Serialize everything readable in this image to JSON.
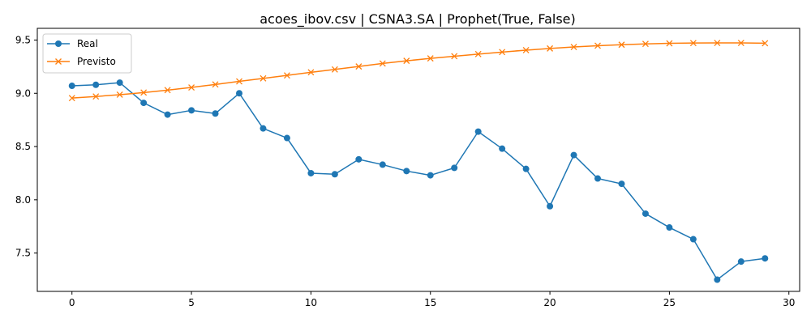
{
  "chart_data": {
    "type": "line",
    "title": "acoes_ibov.csv | CSNA3.SA | Prophet(True, False)",
    "xlabel": "",
    "ylabel": "",
    "xlim": [
      -1.45,
      30.45
    ],
    "ylim": [
      7.14,
      9.61
    ],
    "xticks": [
      0,
      5,
      10,
      15,
      20,
      25,
      30
    ],
    "yticks": [
      7.5,
      8.0,
      8.5,
      9.0,
      9.5
    ],
    "xtick_labels": [
      "0",
      "5",
      "10",
      "15",
      "20",
      "25",
      "30"
    ],
    "ytick_labels": [
      "7.5",
      "8.0",
      "8.5",
      "9.0",
      "9.5"
    ],
    "grid": false,
    "legend": "top-left",
    "x": [
      0,
      1,
      2,
      3,
      4,
      5,
      6,
      7,
      8,
      9,
      10,
      11,
      12,
      13,
      14,
      15,
      16,
      17,
      18,
      19,
      20,
      21,
      22,
      23,
      24,
      25,
      26,
      27,
      28,
      29
    ],
    "series": [
      {
        "name": "Real",
        "marker": "circle",
        "color": "#1f77b4",
        "values": [
          9.07,
          9.08,
          9.1,
          8.91,
          8.8,
          8.84,
          8.81,
          9.0,
          8.67,
          8.58,
          8.25,
          8.24,
          8.38,
          8.33,
          8.27,
          8.23,
          8.3,
          8.64,
          8.48,
          8.29,
          7.94,
          8.42,
          8.2,
          8.15,
          7.87,
          7.74,
          7.63,
          7.25,
          7.42,
          7.45
        ]
      },
      {
        "name": "Previsto",
        "marker": "x",
        "color": "#ff7f0e",
        "values": [
          8.955,
          8.97,
          8.987,
          9.007,
          9.03,
          9.055,
          9.083,
          9.112,
          9.14,
          9.168,
          9.197,
          9.224,
          9.252,
          9.28,
          9.305,
          9.328,
          9.348,
          9.368,
          9.387,
          9.405,
          9.421,
          9.435,
          9.447,
          9.456,
          9.464,
          9.469,
          9.472,
          9.473,
          9.473,
          9.47
        ]
      }
    ]
  }
}
